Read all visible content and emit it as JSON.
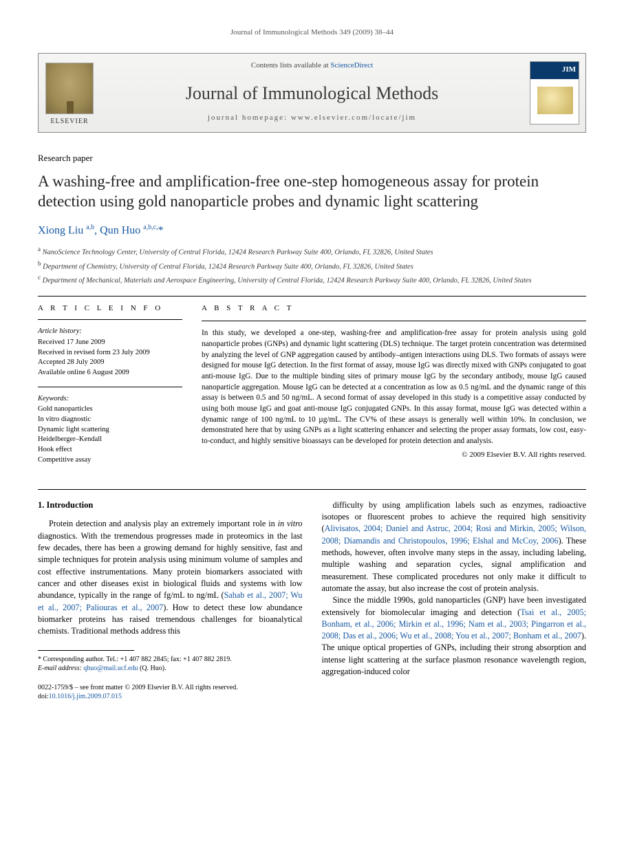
{
  "runningHeader": "Journal of Immunological Methods 349 (2009) 38–44",
  "masthead": {
    "contentsPrefix": "Contents lists available at ",
    "contentsLink": "ScienceDirect",
    "journalName": "Journal of Immunological Methods",
    "homepagePrefix": "journal homepage: ",
    "homepageUrl": "www.elsevier.com/locate/jim",
    "publisherLabel": "ELSEVIER"
  },
  "paperType": "Research paper",
  "title": "A washing-free and amplification-free one-step homogeneous assay for protein detection using gold nanoparticle probes and dynamic light scattering",
  "authors": "Xiong Liu a,b, Qun Huo a,b,c,*",
  "affiliations": {
    "a": "a NanoScience Technology Center, University of Central Florida, 12424 Research Parkway Suite 400, Orlando, FL 32826, United States",
    "b": "b Department of Chemistry, University of Central Florida, 12424 Research Parkway Suite 400, Orlando, FL 32826, United States",
    "c": "c Department of Mechanical, Materials and Aerospace Engineering, University of Central Florida, 12424 Research Parkway Suite 400, Orlando, FL 32826, United States"
  },
  "infoHeading": "A R T I C L E   I N F O",
  "absHeading": "A B S T R A C T",
  "history": {
    "label": "Article history:",
    "received": "Received 17 June 2009",
    "revised": "Received in revised form 23 July 2009",
    "accepted": "Accepted 28 July 2009",
    "online": "Available online 6 August 2009"
  },
  "keywords": {
    "label": "Keywords:",
    "items": [
      "Gold nanoparticles",
      "In vitro diagnostic",
      "Dynamic light scattering",
      "Heidelberger–Kendall",
      "Hook effect",
      "Competitive assay"
    ]
  },
  "abstract": "In this study, we developed a one-step, washing-free and amplification-free assay for protein analysis using gold nanoparticle probes (GNPs) and dynamic light scattering (DLS) technique. The target protein concentration was determined by analyzing the level of GNP aggregation caused by antibody–antigen interactions using DLS. Two formats of assays were designed for mouse IgG detection. In the first format of assay, mouse IgG was directly mixed with GNPs conjugated to goat anti-mouse IgG. Due to the multiple binding sites of primary mouse IgG by the secondary antibody, mouse IgG caused nanoparticle aggregation. Mouse IgG can be detected at a concentration as low as 0.5 ng/mL and the dynamic range of this assay is between 0.5 and 50 ng/mL. A second format of assay developed in this study is a competitive assay conducted by using both mouse IgG and goat anti-mouse IgG conjugated GNPs. In this assay format, mouse IgG was detected within a dynamic range of 100 ng/mL to 10 µg/mL. The CV% of these assays is generally well within 10%. In conclusion, we demonstrated here that by using GNPs as a light scattering enhancer and selecting the proper assay formats, low cost, easy-to-conduct, and highly sensitive bioassays can be developed for protein detection and analysis.",
  "copyright": "© 2009 Elsevier B.V. All rights reserved.",
  "section1": {
    "heading": "1. Introduction",
    "p1a": "Protein detection and analysis play an extremely important role in ",
    "p1b": "in vitro",
    "p1c": " diagnostics. With the tremendous progresses made in proteomics in the last few decades, there has been a growing demand for highly sensitive, fast and simple techniques for protein analysis using minimum volume of samples and cost effective instrumentations. Many protein biomarkers associated with cancer and other diseases exist in biological fluids and systems with low abundance, typically in the range of fg/mL to ng/mL (",
    "p1cite1": "Sahab et al., 2007; Wu et al., 2007; Paliouras et al., 2007",
    "p1d": "). How to detect these low abundance biomarker proteins has raised tremendous challenges for bioanalytical chemists. Traditional methods address this",
    "p2a": "difficulty by using amplification labels such as enzymes, radioactive isotopes or fluorescent probes to achieve the required high sensitivity (",
    "p2cite1": "Alivisatos, 2004; Daniel and Astruc, 2004; Rosi and Mirkin, 2005; Wilson, 2008; Diamandis and Christopoulos, 1996; Elshal and McCoy, 2006",
    "p2b": "). These methods, however, often involve many steps in the assay, including labeling, multiple washing and separation cycles, signal amplification and measurement. These complicated procedures not only make it difficult to automate the assay, but also increase the cost of protein analysis.",
    "p3a": "Since the middle 1990s, gold nanoparticles (GNP) have been investigated extensively for biomolecular imaging and detection (",
    "p3cite1": "Tsai et al., 2005; Bonham, et al., 2006; Mirkin et al., 1996; Nam et al., 2003; Pingarron et al., 2008; Das et al., 2006; Wu et al., 2008; You et al., 2007; Bonham et al., 2007",
    "p3b": "). The unique optical properties of GNPs, including their strong absorption and intense light scattering at the surface plasmon resonance wavelength region, aggregation-induced color"
  },
  "footnotes": {
    "corr": "* Corresponding author. Tel.: +1 407 882 2845; fax: +1 407 882 2819.",
    "emailLabel": "E-mail address: ",
    "email": "qhuo@mail.ucf.edu",
    "emailSuffix": " (Q. Huo)."
  },
  "bottom": {
    "issn": "0022-1759/$ – see front matter © 2009 Elsevier B.V. All rights reserved.",
    "doiLabel": "doi:",
    "doi": "10.1016/j.jim.2009.07.015"
  },
  "colors": {
    "link": "#1456a0",
    "text": "#000000",
    "mastheadBg1": "#f5f5f3",
    "mastheadBg2": "#ececea"
  }
}
